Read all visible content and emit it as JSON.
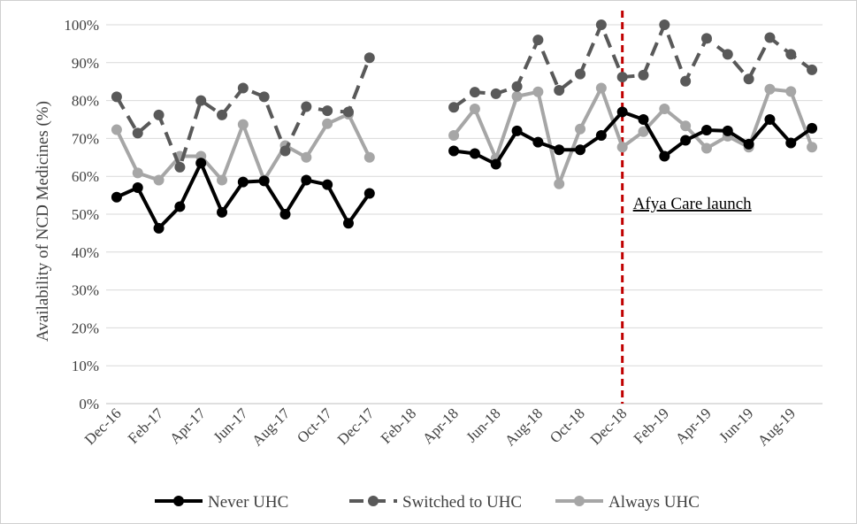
{
  "chart_data": {
    "type": "line",
    "title": "",
    "xlabel": "",
    "ylabel": "Availability of NCD Medicines (%)",
    "ylim": [
      0,
      100
    ],
    "yticks": [
      "0%",
      "10%",
      "20%",
      "30%",
      "40%",
      "50%",
      "60%",
      "70%",
      "80%",
      "90%",
      "100%"
    ],
    "categories": [
      "Dec-16",
      "Jan-17",
      "Feb-17",
      "Mar-17",
      "Apr-17",
      "May-17",
      "Jun-17",
      "Jul-17",
      "Aug-17",
      "Sep-17",
      "Oct-17",
      "Nov-17",
      "Dec-17",
      "Jan-18",
      "Feb-18",
      "Mar-18",
      "Apr-18",
      "May-18",
      "Jun-18",
      "Jul-18",
      "Aug-18",
      "Sep-18",
      "Oct-18",
      "Nov-18",
      "Dec-18",
      "Jan-19",
      "Feb-19",
      "Mar-19",
      "Apr-19",
      "May-19",
      "Jun-19",
      "Jul-19",
      "Aug-19",
      "Sep-19"
    ],
    "xtick_labels": [
      "Dec-16",
      "Feb-17",
      "Apr-17",
      "Jun-17",
      "Aug-17",
      "Oct-17",
      "Dec-17",
      "Feb-18",
      "Apr-18",
      "Jun-18",
      "Aug-18",
      "Oct-18",
      "Dec-18",
      "Feb-19",
      "Apr-19",
      "Jun-19",
      "Aug-19"
    ],
    "series": [
      {
        "name": "Never UHC",
        "color": "#000000",
        "dash": "solid",
        "values": [
          54.5,
          57,
          46.3,
          52,
          63.5,
          50.5,
          58.5,
          58.8,
          50,
          59,
          57.8,
          47.6,
          55.5,
          null,
          null,
          null,
          66.7,
          66,
          63.2,
          72,
          69,
          67,
          67,
          70.8,
          77,
          75,
          65.3,
          69.5,
          72.2,
          72,
          68.5,
          75,
          68.8,
          72.7
        ]
      },
      {
        "name": "Switched to UHC",
        "color": "#595959",
        "dash": "dashed",
        "values": [
          81,
          71.4,
          76.2,
          62.4,
          80,
          76.2,
          83.3,
          81,
          66.7,
          78.4,
          77.3,
          77,
          91.3,
          null,
          null,
          null,
          78.2,
          82.2,
          81.8,
          83.7,
          96,
          82.7,
          87,
          100,
          86.2,
          86.7,
          100,
          85.1,
          96.4,
          92.2,
          85.7,
          96.6,
          92.2,
          88.1
        ]
      },
      {
        "name": "Always UHC",
        "color": "#a6a6a6",
        "dash": "solid",
        "values": [
          72.3,
          60.9,
          59,
          65.3,
          65.3,
          59,
          73.7,
          59,
          68.1,
          65,
          73.9,
          76.4,
          65,
          null,
          null,
          null,
          70.8,
          77.8,
          64.7,
          81.1,
          82.3,
          58,
          72.5,
          83.3,
          67.7,
          71.8,
          77.8,
          73.3,
          67.4,
          70.6,
          67.7,
          83,
          82.4,
          67.7
        ]
      }
    ],
    "annotation": {
      "text": "Afya Care launch",
      "x": "Dec-18",
      "line_color": "#c00000"
    },
    "legend_position": "bottom",
    "grid": "horizontal"
  }
}
